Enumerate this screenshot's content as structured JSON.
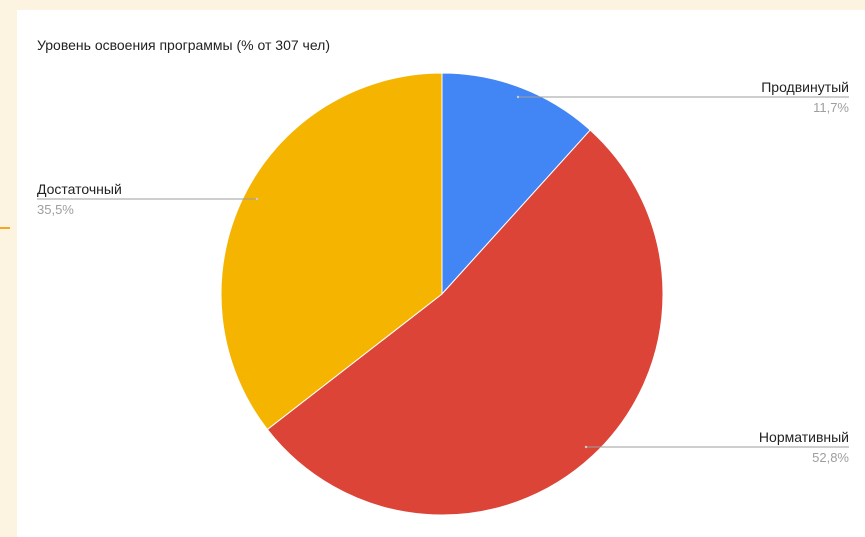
{
  "chart_data": {
    "type": "pie",
    "title": "Уровень освоения программы (% от 307 чел)",
    "series": [
      {
        "label": "Продвинутый",
        "value": 11.7,
        "value_label": "11,7%",
        "color": "#4285f4",
        "label_side": "right"
      },
      {
        "label": "Нормативный",
        "value": 52.8,
        "value_label": "52,8%",
        "color": "#db4437",
        "label_side": "right"
      },
      {
        "label": "Достаточный",
        "value": 35.5,
        "value_label": "35,5%",
        "color": "#f4b400",
        "label_side": "left"
      }
    ],
    "start_angle": "12 o'clock",
    "direction": "clockwise",
    "legend": "none",
    "data_labels": "outside with leader lines"
  }
}
